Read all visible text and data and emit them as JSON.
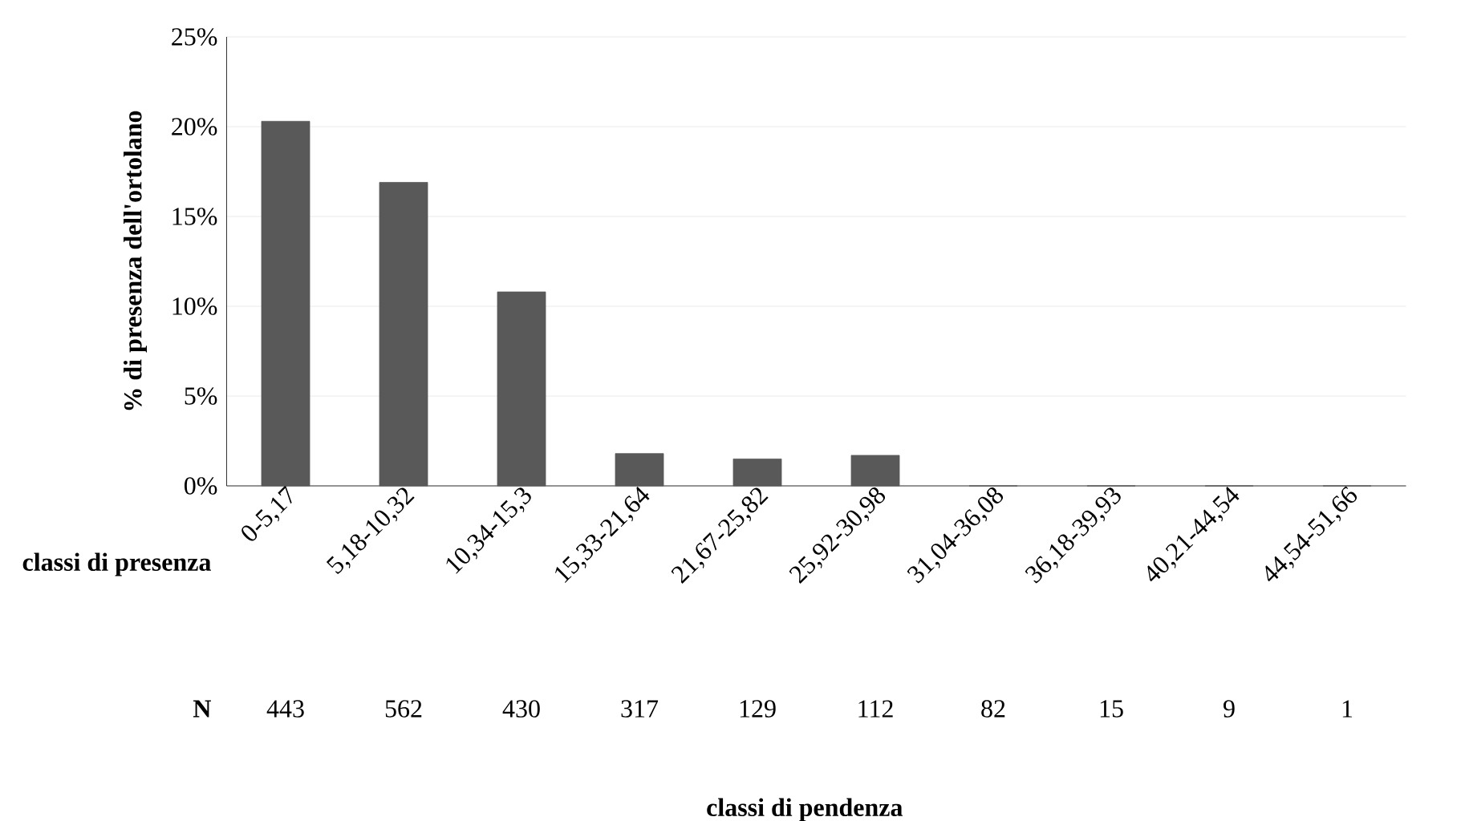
{
  "chart_data": {
    "type": "bar",
    "categories": [
      "0-5,17",
      "5,18-10,32",
      "10,34-15,3",
      "15,33-21,64",
      "21,67-25,82",
      "25,92-30,98",
      "31,04-36,08",
      "36,18-39,93",
      "40,21-44,54",
      "44,54-51,66"
    ],
    "values": [
      20.3,
      16.9,
      10.8,
      1.8,
      1.5,
      1.7,
      0,
      0,
      0,
      0
    ],
    "color": "#595959",
    "ylim": [
      0,
      25
    ],
    "yticks": [
      {
        "value": 0,
        "label": "0%"
      },
      {
        "value": 5,
        "label": "5%"
      },
      {
        "value": 10,
        "label": "10%"
      },
      {
        "value": 15,
        "label": "15%"
      },
      {
        "value": 20,
        "label": "20%"
      },
      {
        "value": 25,
        "label": "25%"
      }
    ],
    "grid": "y",
    "ylabel": "% di presenza dell'ortolano",
    "annotations": [
      "classi di presenza",
      "N",
      "443",
      "562",
      "430",
      "317",
      "129",
      "112",
      "82",
      "15",
      "9",
      "1",
      "classi di pendenza"
    ]
  }
}
